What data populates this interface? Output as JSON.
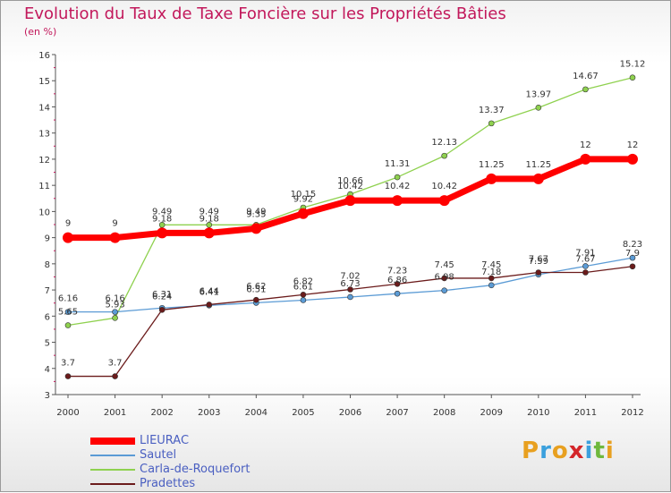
{
  "chart_data": {
    "type": "line",
    "title": "Evolution du Taux de Taxe Foncière sur les Propriétés Bâties",
    "ylabel": "(en %)",
    "xlabel": "",
    "x": [
      "2000",
      "2001",
      "2002",
      "2003",
      "2004",
      "2005",
      "2006",
      "2007",
      "2008",
      "2009",
      "2010",
      "2011",
      "2012"
    ],
    "ylim": [
      3,
      16
    ],
    "yticks": [
      3,
      4,
      5,
      6,
      7,
      8,
      9,
      10,
      11,
      12,
      13,
      14,
      15,
      16
    ],
    "series": [
      {
        "name": "LIEURAC",
        "color": "#ff0000",
        "values": [
          9,
          9,
          9.18,
          9.18,
          9.35,
          9.92,
          10.42,
          10.42,
          10.42,
          11.25,
          11.25,
          12,
          12
        ]
      },
      {
        "name": "Sautel",
        "color": "#5b9bd5",
        "values": [
          6.16,
          6.16,
          6.31,
          6.41,
          6.51,
          6.61,
          6.73,
          6.86,
          6.98,
          7.18,
          7.59,
          7.91,
          8.23
        ]
      },
      {
        "name": "Carla-de-Roquefort",
        "color": "#8fd14f",
        "values": [
          5.65,
          5.93,
          9.49,
          9.49,
          9.49,
          10.15,
          10.66,
          11.31,
          12.13,
          13.37,
          13.97,
          14.67,
          15.12
        ]
      },
      {
        "name": "Pradettes",
        "color": "#6b1b1b",
        "values": [
          3.7,
          3.7,
          6.24,
          6.44,
          6.62,
          6.82,
          7.02,
          7.23,
          7.45,
          7.45,
          7.67,
          7.67,
          7.9
        ]
      }
    ],
    "labels": [
      [
        "9",
        "9",
        "9.18",
        "9.18",
        "9.35",
        "9.92",
        "10.42",
        "10.42",
        "10.42",
        "11.25",
        "11.25",
        "12",
        "12"
      ],
      [
        "6.16",
        "6.16",
        "6.31",
        "6.41",
        "6.51",
        "6.61",
        "6.73",
        "6.86",
        "6.98",
        "7.18",
        "7.59",
        "7.91",
        "8.23"
      ],
      [
        "5.65",
        "5.93",
        "9.49",
        "9.49",
        "9.49",
        "10.15",
        "10.66",
        "11.31",
        "12.13",
        "13.37",
        "13.97",
        "14.67",
        "15.12"
      ],
      [
        "3.7",
        "3.7",
        "6.24",
        "6.44",
        "6.62",
        "6.82",
        "7.02",
        "7.23",
        "7.45",
        "7.45",
        "7.67",
        "7.67",
        "7.9"
      ]
    ],
    "grid": false,
    "legend": "bottom-left"
  },
  "logo": {
    "letters": [
      "P",
      "r",
      "o",
      "x",
      "i",
      "t",
      "i"
    ],
    "colors": [
      "#e8a020",
      "#3ba0dd",
      "#e8a020",
      "#d4262a",
      "#3ba0dd",
      "#6fb83d",
      "#e8a020"
    ]
  }
}
